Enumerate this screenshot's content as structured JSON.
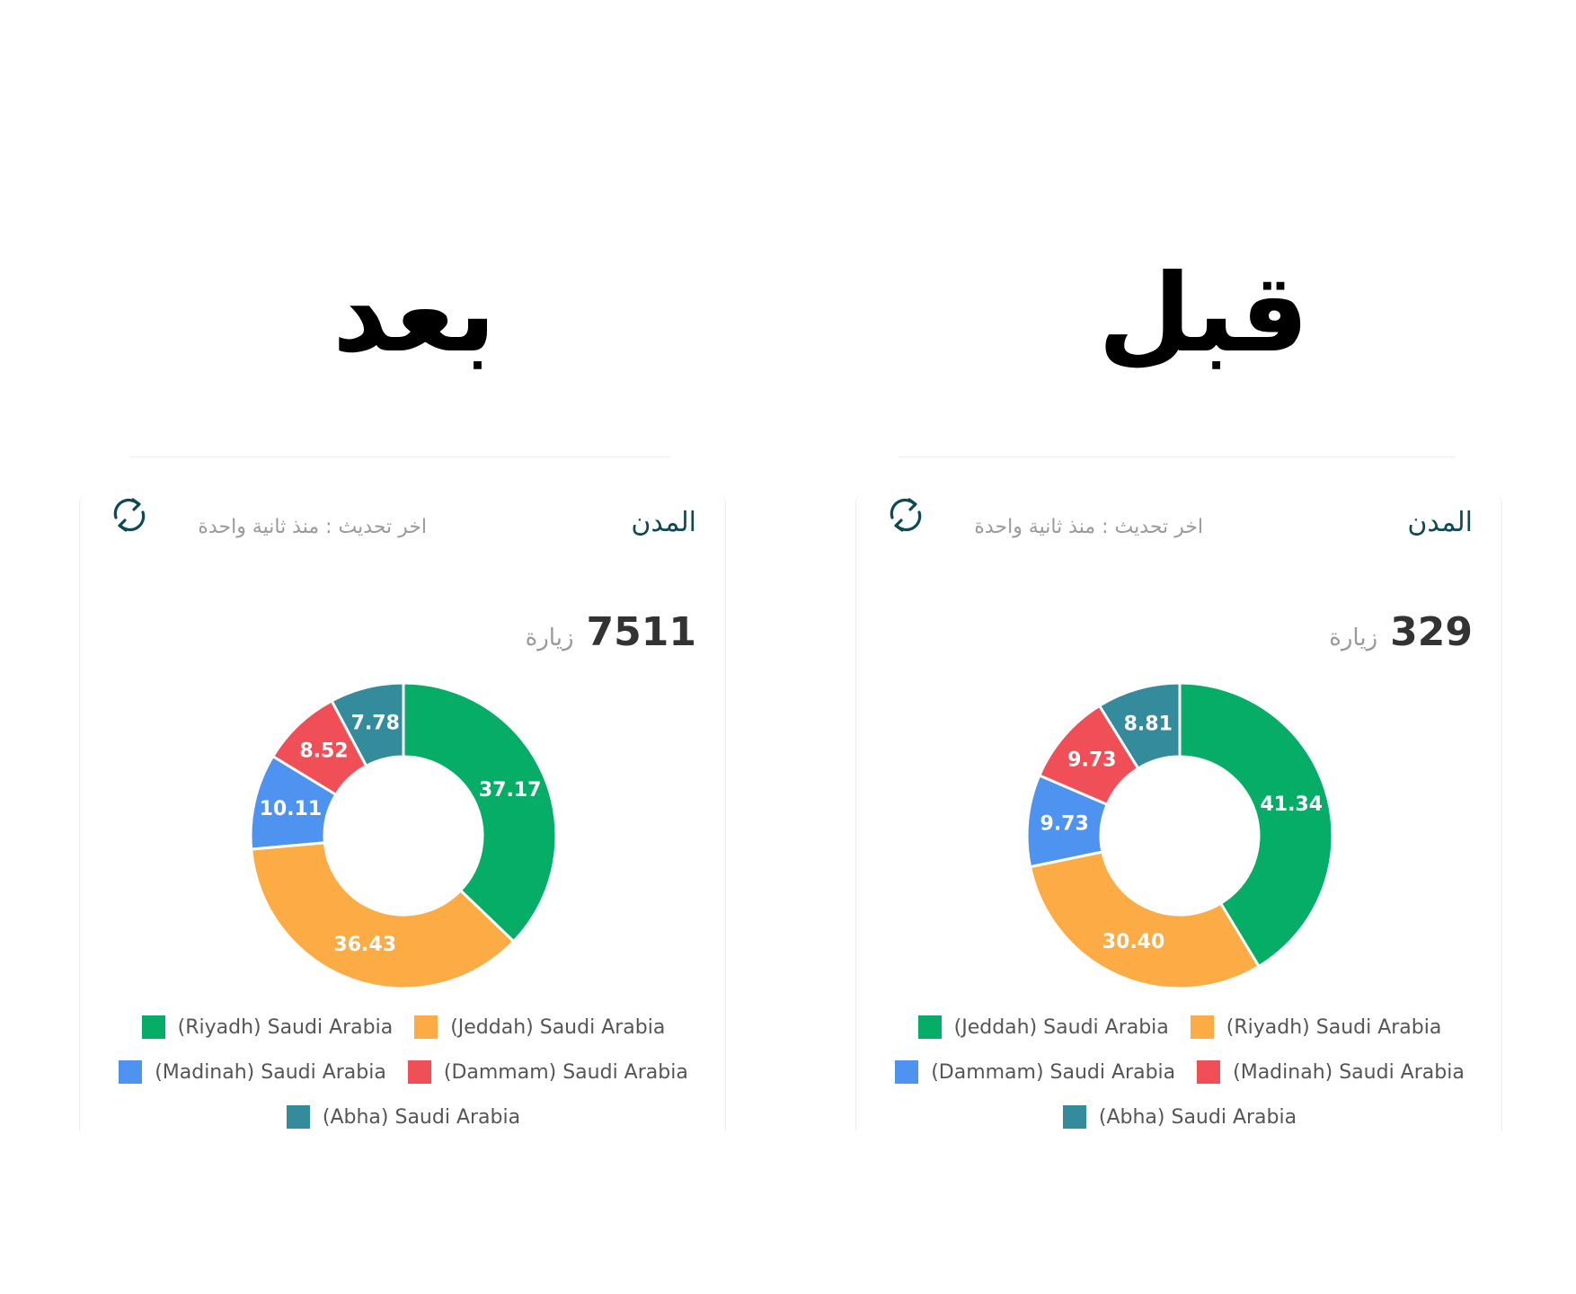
{
  "headings": {
    "after": "بعد",
    "before": "قبل"
  },
  "labels": {
    "visits": "زيارة"
  },
  "colors": {
    "green": "#06ad67",
    "orange": "#fdab44",
    "blue": "#4f93f0",
    "red": "#f14f58",
    "teal": "#338b9c"
  },
  "cards": {
    "after": {
      "title": "المدن",
      "update_text": "اخر تحديث : منذ ثانية واحدة",
      "visits_count": "7511"
    },
    "before": {
      "title": "المدن",
      "update_text": "اخر تحديث : منذ ثانية واحدة",
      "visits_count": "329"
    }
  },
  "chart_data": [
    {
      "type": "pie",
      "donut": true,
      "panel": "after",
      "categories": [
        "(Riyadh) Saudi Arabia",
        "(Jeddah) Saudi Arabia",
        "(Madinah) Saudi Arabia",
        "(Dammam) Saudi Arabia",
        "(Abha) Saudi Arabia"
      ],
      "values": [
        37.17,
        36.43,
        10.11,
        8.52,
        7.78
      ],
      "value_labels": [
        "37.17",
        "36.43",
        "10.11",
        "8.52",
        "7.78"
      ],
      "colors": [
        "#06ad67",
        "#fdab44",
        "#4f93f0",
        "#f14f58",
        "#338b9c"
      ],
      "legend_position": "bottom"
    },
    {
      "type": "pie",
      "donut": true,
      "panel": "before",
      "categories": [
        "(Jeddah) Saudi Arabia",
        "(Riyadh) Saudi Arabia",
        "(Dammam) Saudi Arabia",
        "(Madinah) Saudi Arabia",
        "(Abha) Saudi Arabia"
      ],
      "values": [
        41.34,
        30.4,
        9.73,
        9.73,
        8.81
      ],
      "value_labels": [
        "41.34",
        "30.40",
        "9.73",
        "9.73",
        "8.81"
      ],
      "colors": [
        "#06ad67",
        "#fdab44",
        "#4f93f0",
        "#f14f58",
        "#338b9c"
      ],
      "legend_position": "bottom"
    }
  ]
}
